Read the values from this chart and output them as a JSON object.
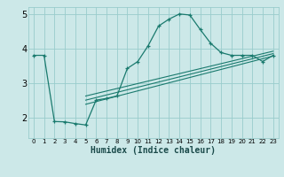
{
  "bg_color": "#cce8e8",
  "grid_color": "#99cccc",
  "line_color": "#1a7a6e",
  "xlabel": "Humidex (Indice chaleur)",
  "xlim": [
    -0.5,
    23.5
  ],
  "ylim": [
    1.4,
    5.2
  ],
  "yticks": [
    2,
    3,
    4,
    5
  ],
  "xticks": [
    0,
    1,
    2,
    3,
    4,
    5,
    6,
    7,
    8,
    9,
    10,
    11,
    12,
    13,
    14,
    15,
    16,
    17,
    18,
    19,
    20,
    21,
    22,
    23
  ],
  "main_x": [
    0,
    1,
    2,
    3,
    4,
    5,
    6,
    7,
    8,
    9,
    10,
    11,
    12,
    13,
    14,
    15,
    16,
    17,
    18,
    19,
    20,
    21,
    22,
    23
  ],
  "main_y": [
    3.8,
    3.8,
    1.88,
    1.87,
    1.82,
    1.78,
    2.5,
    2.55,
    2.62,
    3.42,
    3.62,
    4.08,
    4.65,
    4.85,
    5.0,
    4.97,
    4.55,
    4.15,
    3.88,
    3.8,
    3.8,
    3.8,
    3.62,
    3.8
  ],
  "line1_x": [
    5.0,
    23.0
  ],
  "line1_y": [
    2.38,
    3.78
  ],
  "line2_x": [
    5.0,
    23.0
  ],
  "line2_y": [
    2.5,
    3.85
  ],
  "line3_x": [
    5.0,
    23.0
  ],
  "line3_y": [
    2.62,
    3.92
  ],
  "xlabel_fontsize": 7,
  "xlabel_bold": true,
  "tick_fontsize": 6
}
